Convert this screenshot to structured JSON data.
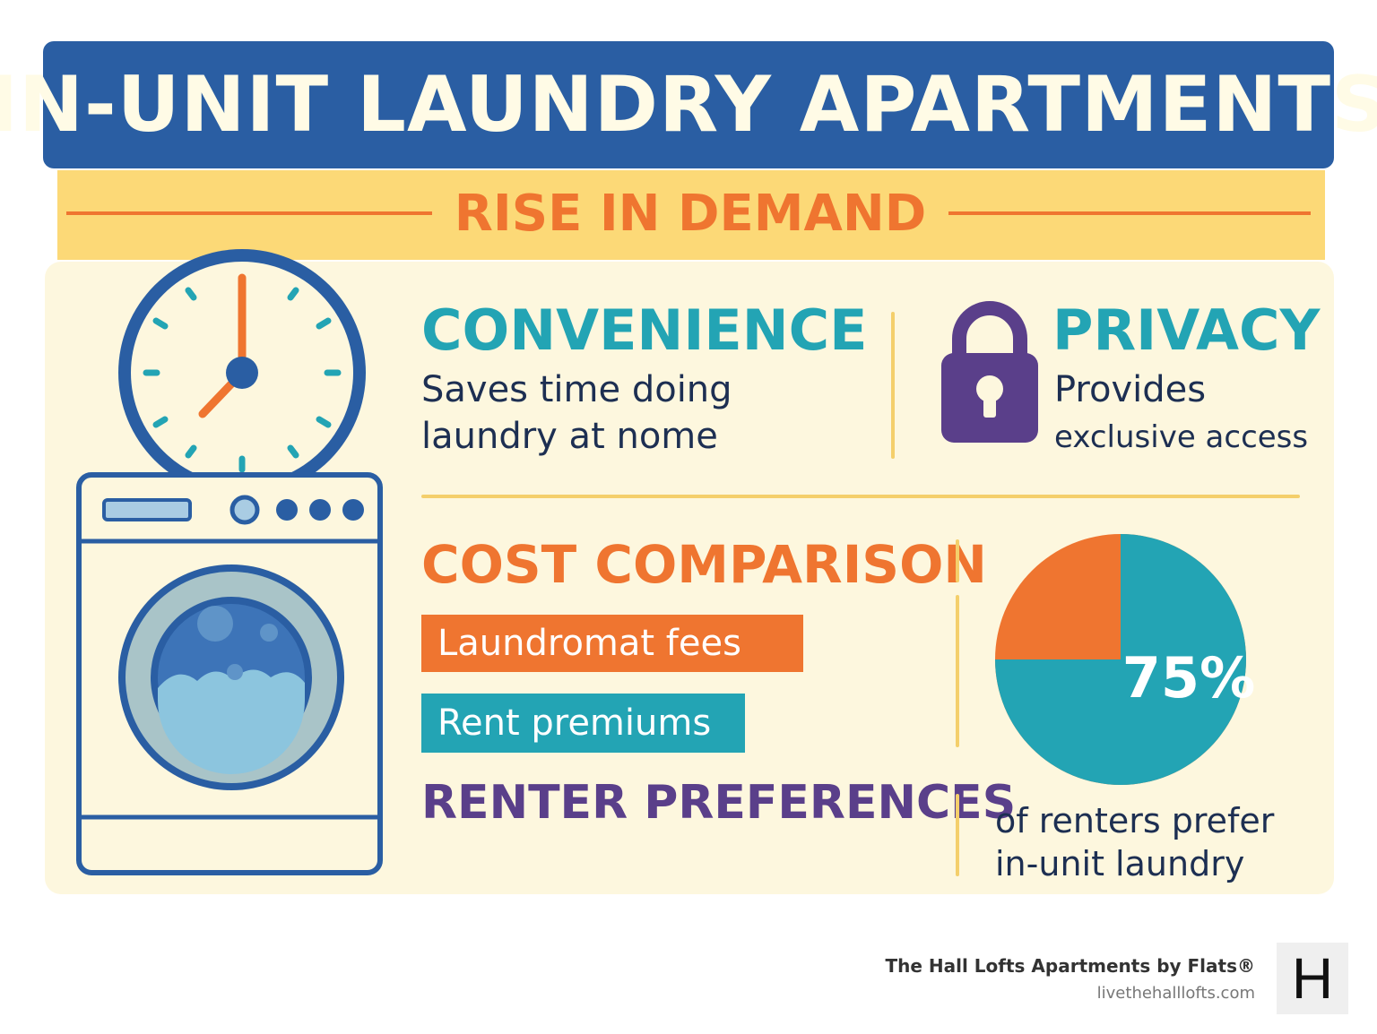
{
  "header": {
    "title": "IN-UNIT LAUNDRY APARTMENTS",
    "subtitle": "RISE IN DEMAND"
  },
  "convenience": {
    "heading": "CONVENIENCE",
    "line1": "Saves time doing",
    "line2": "laundry at nome"
  },
  "privacy": {
    "heading": "PRIVACY",
    "line1": "Provides",
    "line2": "exclusive access"
  },
  "cost": {
    "heading": "COST COMPARISON",
    "tag1": "Laundromat fees",
    "tag2": "Rent premiums"
  },
  "preferences": {
    "heading": "RENTER PREFERENCES",
    "percent_label": "75%",
    "percent_value": 75,
    "caption_line1": "of renters prefer",
    "caption_line2": "in-unit laundry"
  },
  "icons": [
    "clock-icon",
    "washing-machine-icon",
    "lock-icon",
    "pie-chart-icon"
  ],
  "colors": {
    "navy": "#2a5ea3",
    "yellow": "#fcd977",
    "orange": "#ef7530",
    "teal": "#23a4b4",
    "purple": "#5a3f8a",
    "cream": "#fdf7de"
  },
  "footer": {
    "brand": "The Hall Lofts Apartments by Flats®",
    "url": "livethehalllofts.com",
    "logo_letter": "H"
  }
}
